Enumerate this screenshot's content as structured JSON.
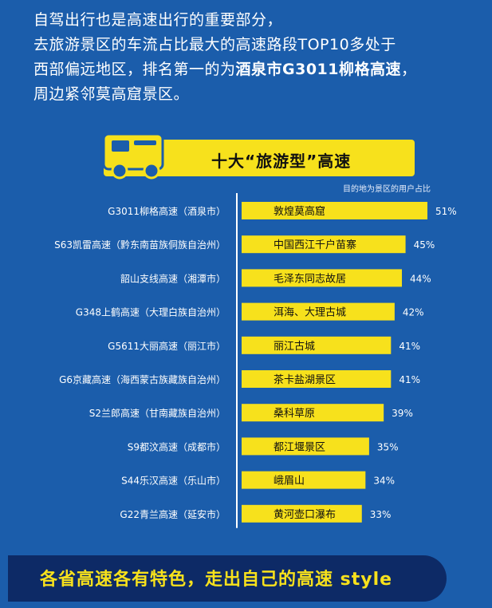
{
  "intro": {
    "line1": "自驾出行也是高速出行的重要部分，",
    "line2": "去旅游景区的车流占比最大的高速路段TOP10多处于",
    "line3_a": "西部偏远地区，排名第一的为",
    "line3_b": "酒泉市G3011柳格高速",
    "line3_c": "，",
    "line4": "周边紧邻莫高窟景区。"
  },
  "banner": {
    "title": "十大“旅游型”高速",
    "icon": "truck-icon"
  },
  "unit_note": "目的地为景区的用户占比",
  "footer": {
    "text": "各省高速各有特色，走出自己的高速 style"
  },
  "colors": {
    "background": "#1b5dab",
    "bar": "#f7e11c",
    "bar_text": "#111111",
    "footer": "#0d2a66"
  },
  "chart_data": {
    "type": "bar",
    "orientation": "horizontal",
    "title": "十大“旅游型”高速",
    "value_unit": "%",
    "categories": [
      "G3011柳格高速（酒泉市）",
      "S63凯雷高速（黔东南苗族侗族自治州）",
      "韶山支线高速（湘潭市）",
      "G348上鹤高速（大理白族自治州）",
      "G5611大丽高速（丽江市）",
      "G6京藏高速（海西蒙古族藏族自治州）",
      "S2兰郎高速（甘南藏族自治州）",
      "S9都汶高速（成都市）",
      "S44乐汉高速（乐山市）",
      "G22青兰高速（延安市）"
    ],
    "bar_labels": [
      "敦煌莫高窟",
      "中国西江千户苗寨",
      "毛泽东同志故居",
      "洱海、大理古城",
      "丽江古城",
      "茶卡盐湖景区",
      "桑科草原",
      "都江堰景区",
      "峨眉山",
      "黄河壶口瀑布"
    ],
    "values": [
      51,
      45,
      44,
      42,
      41,
      41,
      39,
      35,
      34,
      33
    ],
    "value_labels": [
      "51%",
      "45%",
      "44%",
      "42%",
      "41%",
      "41%",
      "39%",
      "35%",
      "34%",
      "33%"
    ],
    "xlim": [
      0,
      51
    ]
  }
}
